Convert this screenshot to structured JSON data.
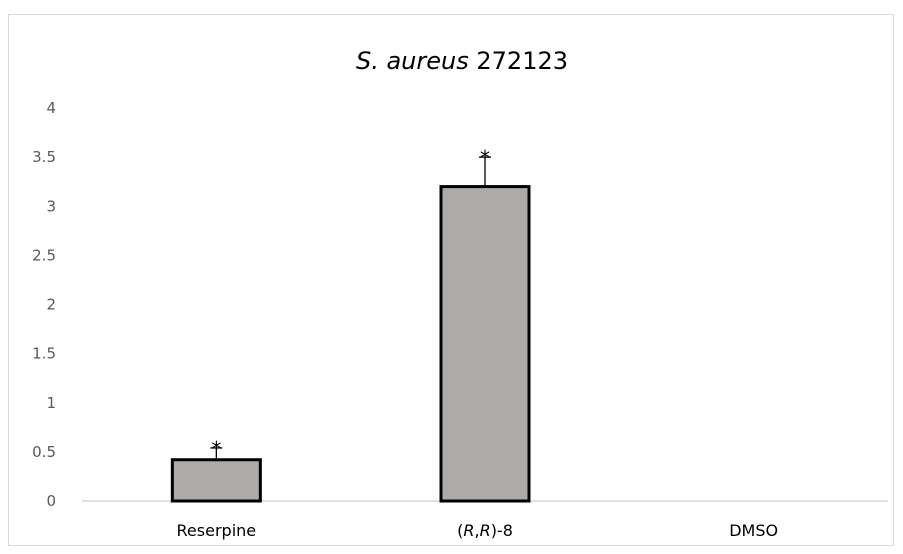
{
  "chart_data": {
    "type": "bar",
    "title": "S. aureus 272123",
    "title_parts": [
      {
        "text": "S. aureus",
        "italic": true
      },
      {
        "text": " 272123",
        "italic": false
      }
    ],
    "xlabel": "",
    "ylabel": "",
    "ylim": [
      0,
      4
    ],
    "yticks": [
      "0",
      "0.5",
      "1",
      "1.5",
      "2",
      "2.5",
      "3",
      "3.5",
      "4"
    ],
    "categories": [
      "Reserpine",
      "(R,R)-8",
      "DMSO"
    ],
    "category_parts": [
      [
        {
          "text": "Reserpine",
          "italic": false
        }
      ],
      [
        {
          "text": "(",
          "italic": false
        },
        {
          "text": "R",
          "italic": true
        },
        {
          "text": ",",
          "italic": false
        },
        {
          "text": "R",
          "italic": true
        },
        {
          "text": ")-8",
          "italic": false
        }
      ],
      [
        {
          "text": "DMSO",
          "italic": false
        }
      ]
    ],
    "values": [
      0.42,
      3.2,
      0
    ],
    "error_plus": [
      0.12,
      0.3,
      0
    ],
    "significance": [
      "*",
      "*",
      ""
    ],
    "grid": false,
    "legend": "none",
    "colors": {
      "bar_fill": "#aeaaaa",
      "bar_stroke": "#000000",
      "axis": "#d9d9d9",
      "tick_text": "#595959"
    }
  }
}
